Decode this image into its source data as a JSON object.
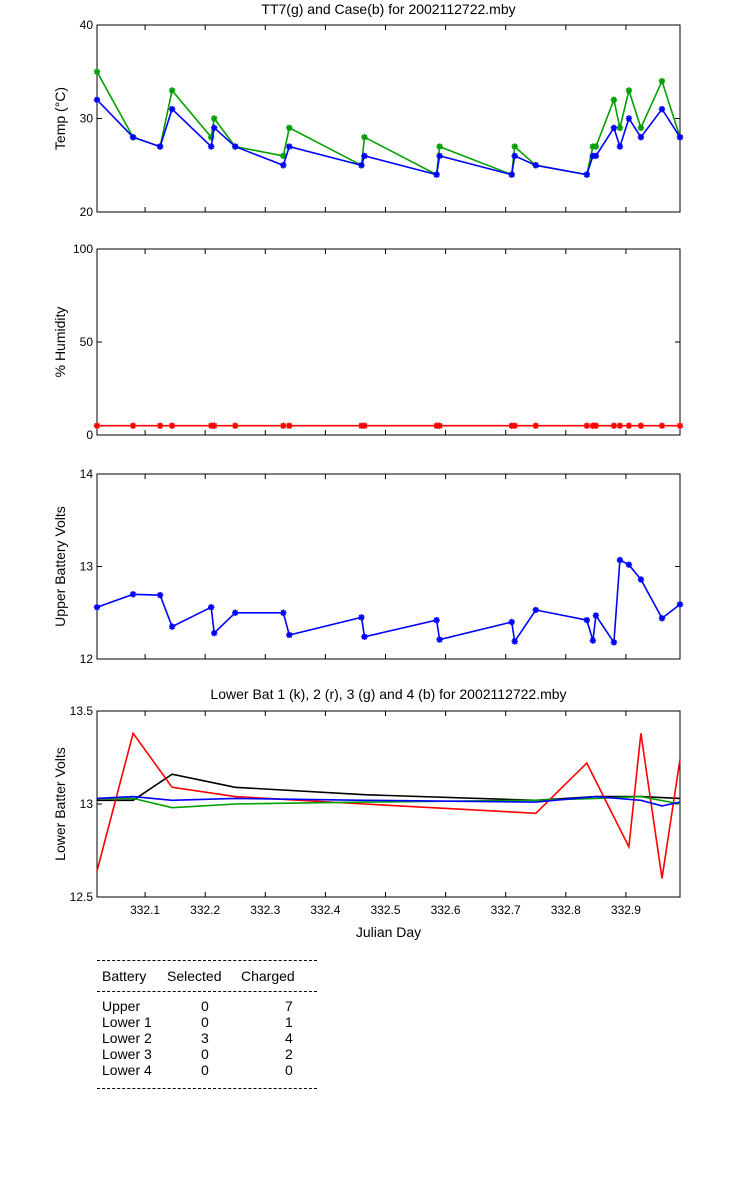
{
  "chart_data": [
    {
      "type": "line",
      "title": "TT7(g) and Case(b) for 2002112722.mby",
      "xlabel": "",
      "ylabel": "Temp  (°C)",
      "xlim": [
        332.02,
        332.99
      ],
      "ylim": [
        20,
        40
      ],
      "yticks": [
        20,
        30,
        40
      ],
      "grid": false,
      "series": [
        {
          "color": "#00a000",
          "x": [
            332.02,
            332.08,
            332.125,
            332.145,
            332.21,
            332.215,
            332.25,
            332.33,
            332.34,
            332.46,
            332.465,
            332.585,
            332.59,
            332.71,
            332.715,
            332.75,
            332.835,
            332.845,
            332.85,
            332.88,
            332.89,
            332.905,
            332.925,
            332.96,
            332.99
          ],
          "y": [
            35,
            28,
            27,
            33,
            28,
            30,
            27,
            26,
            29,
            25,
            28,
            24,
            27,
            24,
            27,
            25,
            24,
            27,
            27,
            32,
            29,
            33,
            29,
            34,
            28
          ]
        },
        {
          "color": "#0000ff",
          "x": [
            332.02,
            332.08,
            332.125,
            332.145,
            332.21,
            332.215,
            332.25,
            332.33,
            332.34,
            332.46,
            332.465,
            332.585,
            332.59,
            332.71,
            332.715,
            332.75,
            332.835,
            332.845,
            332.85,
            332.88,
            332.89,
            332.905,
            332.925,
            332.96,
            332.99
          ],
          "y": [
            32,
            28,
            27,
            31,
            27,
            29,
            27,
            25,
            27,
            25,
            26,
            24,
            26,
            24,
            26,
            25,
            24,
            26,
            26,
            29,
            27,
            30,
            28,
            31,
            28
          ]
        }
      ]
    },
    {
      "type": "line",
      "title": "",
      "xlabel": "",
      "ylabel": "% Humidity",
      "xlim": [
        332.02,
        332.99
      ],
      "ylim": [
        0,
        100
      ],
      "yticks": [
        0,
        50,
        100
      ],
      "grid": false,
      "series": [
        {
          "color": "#ff0000",
          "x": [
            332.02,
            332.08,
            332.125,
            332.145,
            332.21,
            332.215,
            332.25,
            332.33,
            332.34,
            332.46,
            332.465,
            332.585,
            332.59,
            332.71,
            332.715,
            332.75,
            332.835,
            332.845,
            332.85,
            332.88,
            332.89,
            332.905,
            332.925,
            332.96,
            332.99
          ],
          "y": [
            5,
            5,
            5,
            5,
            5,
            5,
            5,
            5,
            5,
            5,
            5,
            5,
            5,
            5,
            5,
            5,
            5,
            5,
            5,
            5,
            5,
            5,
            5,
            5,
            5
          ]
        }
      ]
    },
    {
      "type": "line",
      "title": "",
      "xlabel": "",
      "ylabel": "Upper Battery Volts",
      "xlim": [
        332.02,
        332.99
      ],
      "ylim": [
        12,
        14
      ],
      "yticks": [
        12,
        13,
        14
      ],
      "grid": false,
      "series": [
        {
          "color": "#0000ff",
          "x": [
            332.02,
            332.08,
            332.125,
            332.145,
            332.21,
            332.215,
            332.25,
            332.33,
            332.34,
            332.46,
            332.465,
            332.585,
            332.59,
            332.71,
            332.715,
            332.75,
            332.835,
            332.845,
            332.85,
            332.88,
            332.89,
            332.905,
            332.925,
            332.96,
            332.99
          ],
          "y": [
            12.56,
            12.7,
            12.69,
            12.35,
            12.56,
            12.28,
            12.5,
            12.5,
            12.26,
            12.45,
            12.24,
            12.42,
            12.21,
            12.4,
            12.19,
            12.53,
            12.42,
            12.2,
            12.47,
            12.18,
            13.07,
            13.02,
            12.86,
            12.44,
            12.59
          ]
        }
      ]
    },
    {
      "type": "line",
      "title": "Lower Bat 1 (k), 2 (r), 3 (g) and 4 (b) for 2002112722.mby",
      "xlabel": "Julian Day",
      "ylabel": "Lower Batter Volts",
      "xlim": [
        332.02,
        332.99
      ],
      "ylim": [
        12.5,
        13.5
      ],
      "yticks": [
        12.5,
        13,
        13.5
      ],
      "xticks": [
        332.1,
        332.2,
        332.3,
        332.4,
        332.5,
        332.6,
        332.7,
        332.8,
        332.9
      ],
      "grid": false,
      "series": [
        {
          "color": "#000000",
          "x": [
            332.02,
            332.08,
            332.145,
            332.25,
            332.465,
            332.75,
            332.85,
            332.925,
            332.99
          ],
          "y": [
            13.02,
            13.02,
            13.16,
            13.09,
            13.05,
            13.02,
            13.04,
            13.04,
            13.03
          ]
        },
        {
          "color": "#ff0000",
          "x": [
            332.02,
            332.08,
            332.145,
            332.25,
            332.465,
            332.75,
            332.835,
            332.905,
            332.925,
            332.96,
            332.99
          ],
          "y": [
            12.64,
            13.38,
            13.09,
            13.04,
            13.0,
            12.95,
            13.22,
            12.77,
            13.38,
            12.6,
            13.24
          ]
        },
        {
          "color": "#00a000",
          "x": [
            332.02,
            332.08,
            332.145,
            332.25,
            332.465,
            332.75,
            332.85,
            332.925,
            332.99
          ],
          "y": [
            13.03,
            13.03,
            12.98,
            13.0,
            13.01,
            13.02,
            13.03,
            13.04,
            13.0
          ]
        },
        {
          "color": "#0000ff",
          "x": [
            332.02,
            332.08,
            332.145,
            332.25,
            332.465,
            332.75,
            332.85,
            332.925,
            332.96,
            332.99
          ],
          "y": [
            13.03,
            13.04,
            13.02,
            13.03,
            13.02,
            13.01,
            13.04,
            13.02,
            12.99,
            13.01
          ]
        }
      ]
    }
  ],
  "battery_table": {
    "headers": [
      "Battery",
      "Selected",
      "Charged"
    ],
    "rows": [
      [
        "Upper",
        "0",
        "7"
      ],
      [
        "Lower 1",
        "0",
        "1"
      ],
      [
        "Lower 2",
        "3",
        "4"
      ],
      [
        "Lower 3",
        "0",
        "2"
      ],
      [
        "Lower 4",
        "0",
        "0"
      ]
    ]
  }
}
